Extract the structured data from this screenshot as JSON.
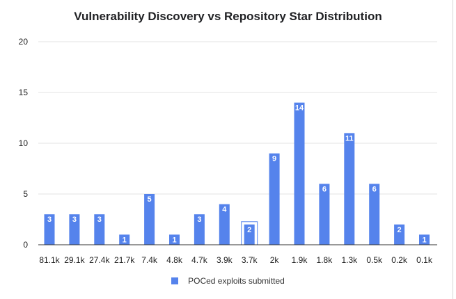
{
  "chart_data": {
    "type": "bar",
    "title": "Vulnerability Discovery vs Repository Star Distribution",
    "xlabel": "",
    "ylabel": "",
    "categories": [
      "81.1k",
      "29.1k",
      "27.4k",
      "21.7k",
      "7.4k",
      "4.8k",
      "4.7k",
      "3.9k",
      "3.7k",
      "2k",
      "1.9k",
      "1.8k",
      "1.3k",
      "0.5k",
      "0.2k",
      "0.1k"
    ],
    "series": [
      {
        "name": "POCed exploits submitted",
        "values": [
          3,
          3,
          3,
          1,
          5,
          1,
          3,
          4,
          2,
          9,
          14,
          6,
          11,
          6,
          2,
          1
        ]
      }
    ],
    "ylim": [
      0,
      20
    ],
    "yticks": [
      0,
      5,
      10,
      15,
      20
    ],
    "grid": true,
    "legend_position": "bottom",
    "bar_color": "#5583ec",
    "highlighted_category": "3.7k"
  }
}
